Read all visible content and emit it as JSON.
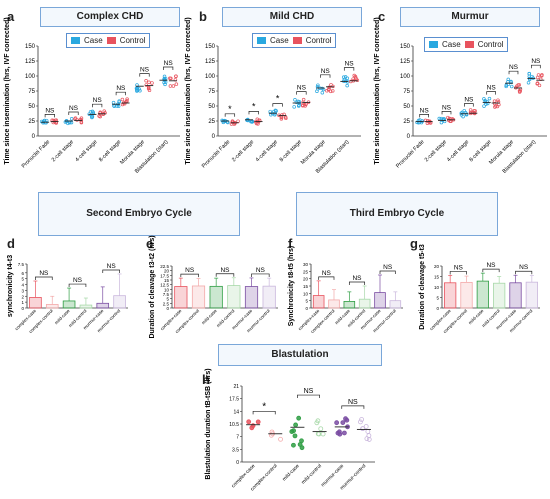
{
  "sections": {
    "second_cycle": "Second Embryo Cycle",
    "third_cycle": "Third Embryo Cycle",
    "blastulation": "Blastulation"
  },
  "legend": {
    "case": "Case",
    "control": "Control"
  },
  "colors": {
    "case": "#29a8e0",
    "control": "#e8535e",
    "box_border": "#7aa7d9"
  },
  "chart_data": [
    {
      "id": "a",
      "type": "scatter",
      "title": "Complex CHD",
      "ylabel": "Time since insemination (hrs, IVF corrected)",
      "ylim": [
        0,
        150
      ],
      "yticks": [
        0,
        25,
        50,
        75,
        100,
        125,
        150
      ],
      "categories": [
        "Pronuclei Fade",
        "2-cell stage",
        "4-cell stage",
        "8-cell stage",
        "Morula stage",
        "Blastulation (start)"
      ],
      "series": [
        {
          "name": "Case",
          "values": [
            23,
            25,
            36,
            53,
            83,
            93
          ]
        },
        {
          "name": "Control",
          "values": [
            24,
            26,
            37,
            55,
            84,
            92
          ]
        }
      ],
      "annotations": [
        "NS",
        "NS",
        "NS",
        "NS",
        "NS",
        "NS"
      ]
    },
    {
      "id": "b",
      "type": "scatter",
      "title": "Mild CHD",
      "ylabel": "Time since insemination (hrs, IVF corrected)",
      "ylim": [
        0,
        150
      ],
      "yticks": [
        0,
        25,
        50,
        75,
        100,
        125,
        150
      ],
      "categories": [
        "Pronuclei Fade",
        "2-cell stage",
        "4-cell stage",
        "8-cell stage",
        "Morula stage",
        "Blastulation (start)"
      ],
      "series": [
        {
          "name": "Case",
          "values": [
            25,
            27,
            38,
            55,
            80,
            91
          ]
        },
        {
          "name": "Control",
          "values": [
            22,
            24,
            34,
            56,
            82,
            92
          ]
        }
      ],
      "annotations": [
        "*",
        "*",
        "*",
        "NS",
        "NS",
        "NS"
      ]
    },
    {
      "id": "c",
      "type": "scatter",
      "title": "Murmur",
      "ylabel": "Time since insemination (hrs, IVF corrected)",
      "ylim": [
        0,
        150
      ],
      "yticks": [
        0,
        25,
        50,
        75,
        100,
        125,
        150
      ],
      "categories": [
        "Pronuclei Fade",
        "2-cell stage",
        "4-cell stage",
        "8-cell stage",
        "Morula stage",
        "Blastulation (start)"
      ],
      "series": [
        {
          "name": "Case",
          "values": [
            24,
            26,
            37,
            56,
            88,
            96
          ]
        },
        {
          "name": "Control",
          "values": [
            24,
            27,
            38,
            55,
            80,
            93
          ]
        }
      ],
      "annotations": [
        "NS",
        "NS",
        "NS",
        "NS",
        "NS",
        "NS"
      ]
    },
    {
      "id": "d",
      "type": "bar",
      "title": "",
      "ylabel": "synchronicity t4-t3",
      "ylim": [
        0,
        7.5
      ],
      "yticks": [
        0,
        1,
        2,
        3,
        4,
        5,
        6,
        7.5
      ],
      "categories": [
        "complex-case",
        "complex-control",
        "mild-case",
        "mild-control",
        "murmur-case",
        "murmur-control"
      ],
      "values": [
        1.8,
        0.6,
        1.2,
        0.5,
        0.8,
        2.1
      ],
      "errors": [
        2.8,
        1.4,
        2.2,
        1.2,
        2.8,
        3.7
      ],
      "annotations": [
        "NS",
        "NS",
        "NS"
      ]
    },
    {
      "id": "e",
      "type": "bar",
      "title": "",
      "ylabel": "Duration of cleavage t3-t2 (hrs)",
      "ylim": [
        0,
        22.5
      ],
      "yticks": [
        0,
        2.5,
        5,
        7.5,
        10,
        12.5,
        15,
        17.5,
        20,
        22.5
      ],
      "categories": [
        "complex-case",
        "complex-control",
        "mild-case",
        "mild-control",
        "murmur-case",
        "murmur-control"
      ],
      "values": [
        11.5,
        11.8,
        11.6,
        12.0,
        11.5,
        11.7
      ],
      "errors": [
        4.5,
        4.0,
        4.4,
        4.2,
        4.6,
        4.3
      ],
      "annotations": [
        "NS",
        "NS",
        "NS"
      ]
    },
    {
      "id": "f",
      "type": "bar",
      "title": "",
      "ylabel": "Synchronicity t8-t5 (hrs)",
      "ylim": [
        0,
        30
      ],
      "yticks": [
        0,
        5,
        10,
        15,
        20,
        25,
        30
      ],
      "categories": [
        "complex-case",
        "complex-control",
        "mild-case",
        "mild-control",
        "murmur-case",
        "murmur-control"
      ],
      "values": [
        8.5,
        5.5,
        4.5,
        6.0,
        10.5,
        5.0
      ],
      "errors": [
        10.0,
        7.0,
        6.5,
        9.0,
        12.0,
        6.0
      ],
      "annotations": [
        "NS",
        "NS",
        "NS"
      ]
    },
    {
      "id": "g",
      "type": "bar",
      "title": "",
      "ylabel": "Duration of cleavage t5-t3",
      "ylim": [
        0,
        20
      ],
      "yticks": [
        0,
        5,
        10,
        15,
        20
      ],
      "categories": [
        "complex-case",
        "complex-control",
        "mild-case",
        "mild-control",
        "murmur-case",
        "murmur-control"
      ],
      "values": [
        12.0,
        12.2,
        12.8,
        11.8,
        12.0,
        12.3
      ],
      "errors": [
        3.5,
        3.0,
        3.8,
        3.2,
        3.6,
        3.1
      ],
      "annotations": [
        "NS",
        "NS",
        "NS"
      ]
    },
    {
      "id": "h",
      "type": "scatter",
      "title": "",
      "ylabel": "Blastulation duration tB-tSB (hrs)",
      "ylim": [
        0,
        21
      ],
      "yticks": [
        0,
        3.5,
        7,
        10.5,
        14,
        17.5,
        21
      ],
      "categories": [
        "complex-case",
        "complex-control",
        "mild-case",
        "mild-control",
        "murmur-case",
        "murmur-control"
      ],
      "means": [
        10.3,
        7.8,
        9.6,
        8.4,
        9.7,
        9.0
      ],
      "annotations": [
        "*",
        "NS",
        "NS"
      ]
    }
  ]
}
